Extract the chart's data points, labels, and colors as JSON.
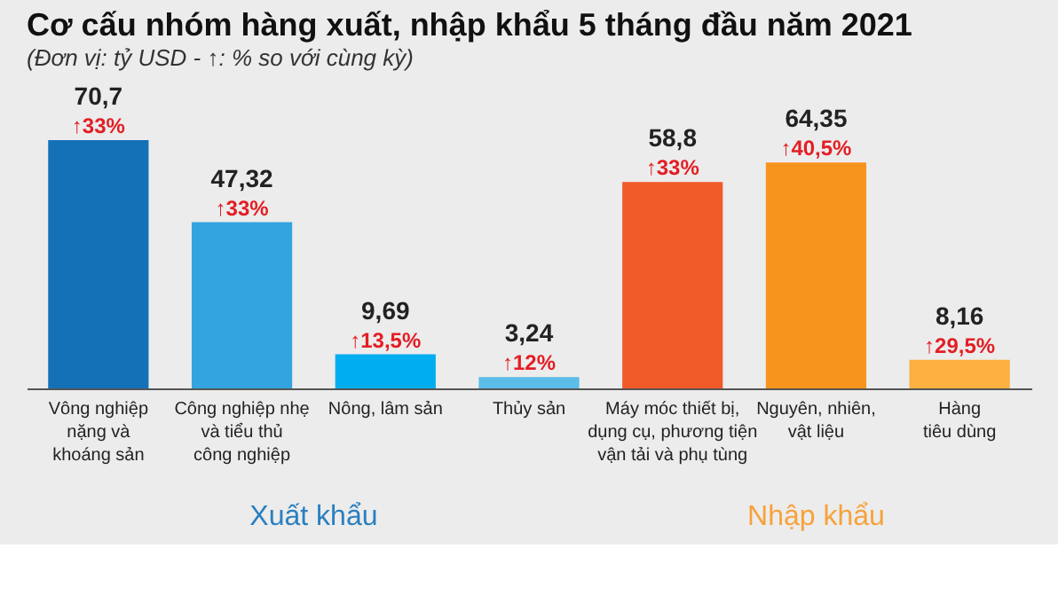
{
  "chart_data": {
    "type": "bar",
    "title": "Cơ cấu nhóm hàng xuất, nhập khẩu 5 tháng đầu năm 2021",
    "subtitle": "(Đơn vị: tỷ USD - ↑: % so với cùng kỳ)",
    "categories": [
      "Vông nghiệp\nnặng và\nkhoáng sản",
      "Công nghiệp nhẹ\nvà tiểu thủ\ncông nghiệp",
      "Nông, lâm sản",
      "Thủy sản",
      "Máy móc thiết bị,\ndụng cụ, phương tiện\nvận tải và phụ tùng",
      "Nguyên, nhiên,\nvật liệu",
      "Hàng\ntiêu dùng"
    ],
    "series": [
      {
        "name": "Xuất khẩu",
        "color": "#2a7fc0",
        "colors": [
          "#1471b8",
          "#33a4df",
          "#00aeef",
          "#5cbde9",
          null,
          null,
          null
        ],
        "values": [
          70.7,
          47.32,
          9.69,
          3.24,
          null,
          null,
          null
        ],
        "value_labels": [
          "70,7",
          "47,32",
          "9,69",
          "3,24",
          null,
          null,
          null
        ]
      },
      {
        "name": "Nhập khẩu",
        "color": "#f7a23b",
        "colors": [
          null,
          null,
          null,
          null,
          "#f15a29",
          "#f7941d",
          "#fbb040"
        ],
        "values": [
          null,
          null,
          null,
          null,
          58.8,
          64.35,
          8.16
        ],
        "value_labels": [
          null,
          null,
          null,
          null,
          "58,8",
          "64,35",
          "8,16"
        ]
      }
    ],
    "annotations": [
      {
        "text": "↑33%",
        "x": "Vông nghiệp\nnặng và\nkhoáng sản",
        "y": 70.7
      },
      {
        "text": "↑33%",
        "x": "Công nghiệp nhẹ\nvà tiểu thủ\ncông nghiệp",
        "y": 47.32
      },
      {
        "text": "↑13,5%",
        "x": "Nông, lâm sản",
        "y": 9.69
      },
      {
        "text": "↑12%",
        "x": "Thủy sản",
        "y": 3.24
      },
      {
        "text": "↑33%",
        "x": "Máy móc thiết bị,\ndụng cụ, phương tiện\nvận tải và phụ tùng",
        "y": 58.8
      },
      {
        "text": "↑40,5%",
        "x": "Nguyên, nhiên,\nvật liệu",
        "y": 64.35
      },
      {
        "text": "↑29,5%",
        "x": "Hàng\ntiêu dùng",
        "y": 8.16
      }
    ],
    "grid": false
  }
}
